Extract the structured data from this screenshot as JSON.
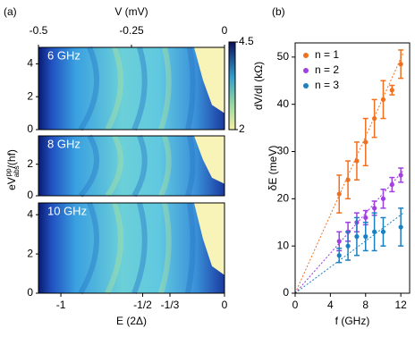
{
  "chart_data": [
    {
      "type": "heatmap",
      "panel_label": "(a)",
      "top_xlabel": "V (mV)",
      "xlabel": "E (2Δ)",
      "ylabel": {
        "main": "eV",
        "sup": "pp",
        "sub": "abs",
        "rest": "/(hf)"
      },
      "top_xlim": [
        -0.5,
        0
      ],
      "top_xticks": [
        -0.5,
        -0.25,
        0
      ],
      "xlim": [
        -1.137,
        0
      ],
      "xticks": [
        -1,
        {
          "value": -0.5,
          "label": "-1/2"
        },
        {
          "value": -0.3333,
          "label": "-1/3"
        },
        0
      ],
      "colorbar": {
        "label": "dV/dI (kΩ)",
        "lim": [
          2,
          4.5
        ],
        "ticks": [
          2,
          4.5
        ]
      },
      "panels": [
        {
          "label": "6 GHz",
          "ylim": [
            0,
            5
          ],
          "yticks": [
            0,
            2,
            4
          ]
        },
        {
          "label": "8 GHz",
          "ylim": [
            0,
            3.8
          ],
          "yticks": [
            0,
            2
          ]
        },
        {
          "label": "10 GHz",
          "ylim": [
            0,
            4.6
          ],
          "yticks": [
            0,
            2,
            4
          ]
        }
      ]
    },
    {
      "type": "scatter",
      "panel_label": "(b)",
      "xlabel": "f (GHz)",
      "ylabel": "δE (meV)",
      "xlim": [
        0,
        13
      ],
      "xticks": [
        0,
        4,
        8,
        12
      ],
      "ylim": [
        0,
        53
      ],
      "yticks": [
        0,
        10,
        20,
        30,
        40,
        50
      ],
      "series": [
        {
          "name": "n = 1",
          "color": "#f07020",
          "x": [
            5,
            6,
            7,
            8,
            9,
            10,
            11,
            12
          ],
          "values": [
            21,
            24,
            28,
            32,
            37,
            41,
            43,
            48.5
          ],
          "errors": [
            4,
            4,
            4,
            5,
            4,
            4,
            1,
            3
          ],
          "fit": {
            "x": [
              0,
              12.3
            ],
            "y": [
              0,
              51
            ]
          }
        },
        {
          "name": "n = 2",
          "color": "#a040e0",
          "x": [
            5,
            6,
            7,
            8,
            9,
            10,
            11,
            12
          ],
          "values": [
            11,
            13,
            15,
            16,
            18,
            20,
            23,
            25
          ],
          "errors": [
            2,
            2,
            2,
            1.5,
            1.5,
            2,
            1.5,
            1.5
          ],
          "fit": {
            "x": [
              0,
              12.3
            ],
            "y": [
              0,
              26
            ]
          }
        },
        {
          "name": "n = 3",
          "color": "#1a80c0",
          "x": [
            5,
            6,
            7,
            8,
            9,
            10,
            12
          ],
          "values": [
            8,
            10,
            12,
            12,
            13,
            13,
            14
          ],
          "errors": [
            1.5,
            3,
            4,
            3,
            4,
            3,
            4
          ],
          "fit": {
            "x": [
              0,
              12.3
            ],
            "y": [
              0,
              17
            ]
          }
        }
      ]
    }
  ]
}
